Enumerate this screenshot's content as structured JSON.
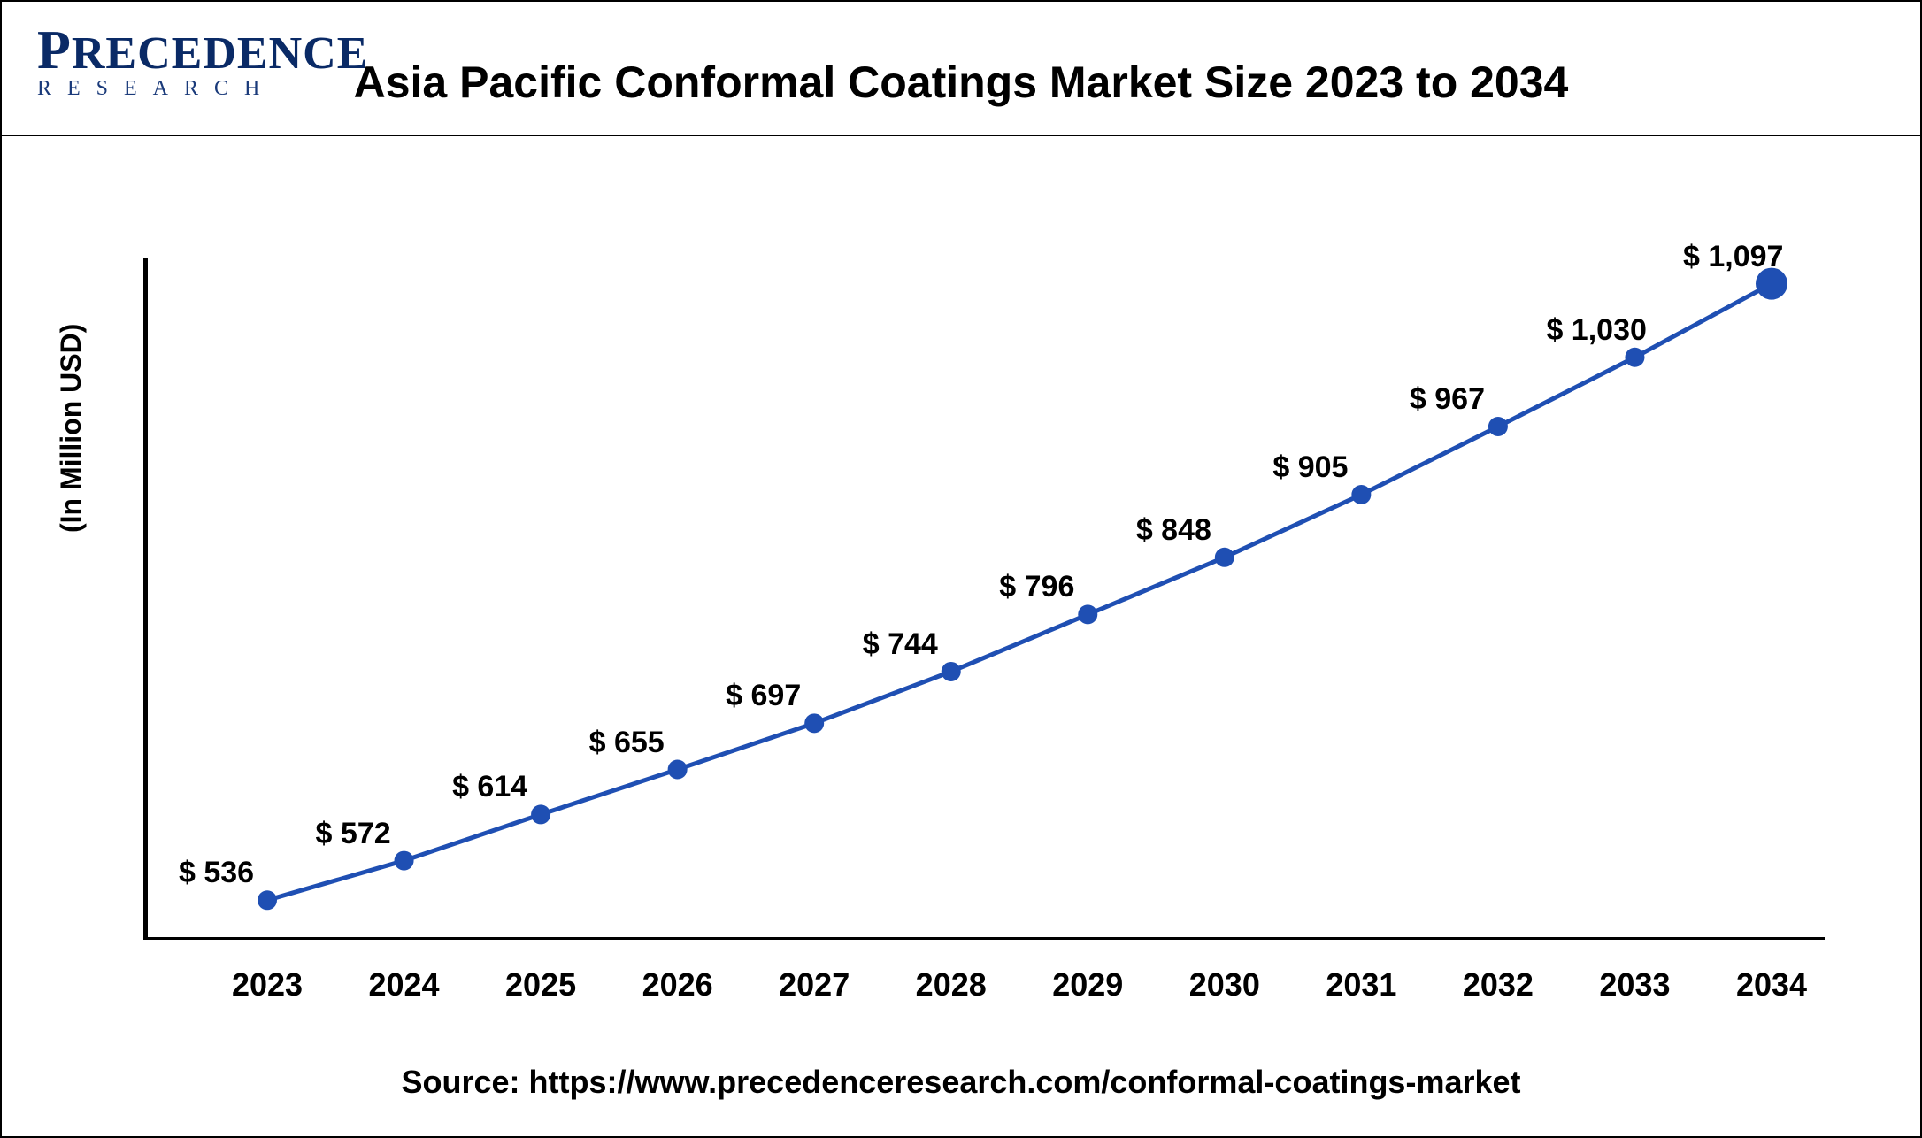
{
  "logo": {
    "top": "PRECEDENCE",
    "sub": "RESEARCH"
  },
  "title": "Asia Pacific Conformal Coatings Market Size 2023 to 2034",
  "ylabel": "(In Million USD)",
  "source": "Source: https://www.precedenceresearch.com/conformal-coatings-market",
  "chart": {
    "type": "line",
    "years": [
      "2023",
      "2024",
      "2025",
      "2026",
      "2027",
      "2028",
      "2029",
      "2030",
      "2031",
      "2032",
      "2033",
      "2034"
    ],
    "values": [
      536,
      572,
      614,
      655,
      697,
      744,
      796,
      848,
      905,
      967,
      1030,
      1097
    ],
    "labels": [
      "$ 536",
      "$ 572",
      "$ 614",
      "$ 655",
      "$ 697",
      "$ 744",
      "$ 796",
      "$ 848",
      "$ 905",
      "$ 967",
      "$ 1,030",
      "$ 1,097"
    ],
    "line_color": "#1f4fb3",
    "line_width": 5,
    "marker_color": "#1f4fb3",
    "marker_radius": 11,
    "last_marker_radius": 18,
    "ymin": 500,
    "ymax": 1120,
    "plot_left_pad": 140,
    "plot_right_pad": 60,
    "label_fontsize": 34,
    "tick_fontsize": 36,
    "title_fontsize": 50,
    "background_color": "#ffffff"
  }
}
